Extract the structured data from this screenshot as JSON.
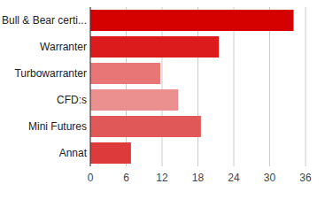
{
  "chart_data": {
    "type": "bar",
    "orientation": "horizontal",
    "categories": [
      "Bull & Bear certi...",
      "Warranter",
      "Turbowarranter",
      "CFD:s",
      "Mini Futures",
      "Annat"
    ],
    "values": [
      34,
      21.5,
      11.7,
      14.7,
      18.5,
      6.8
    ],
    "colors": [
      "#d50000",
      "#dc1c1c",
      "#e87676",
      "#ec8f8f",
      "#e05858",
      "#dd3b3b"
    ],
    "xlim": [
      0,
      36
    ],
    "xticks": [
      0,
      6,
      12,
      18,
      24,
      30,
      36
    ],
    "grid": true
  }
}
